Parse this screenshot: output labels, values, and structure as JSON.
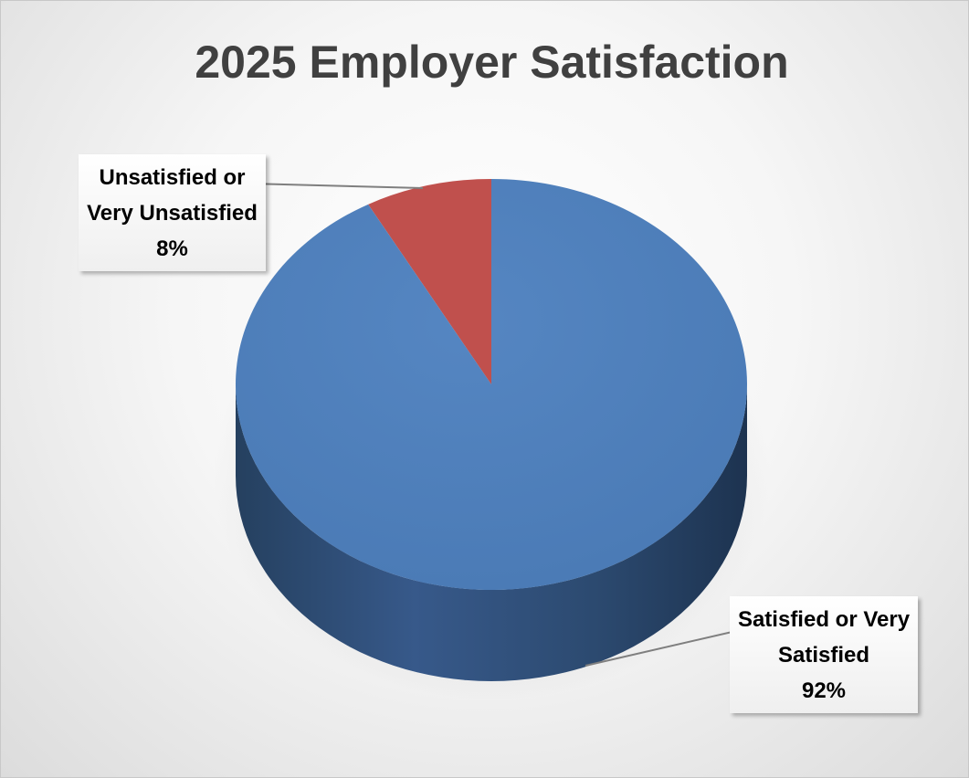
{
  "chart_data": {
    "type": "pie",
    "title": "2025 Employer Satisfaction",
    "slices": [
      {
        "name": "Unsatisfied or",
        "name_line2": "Very Unsatisfied",
        "value": 8,
        "value_label": "8%",
        "color": "#c0504d",
        "side_color": "#7a2f2c"
      },
      {
        "name": "Satisfied or Very",
        "name_line2": "Satisfied",
        "value": 92,
        "value_label": "92%",
        "color": "#4f81bd",
        "side_color": "#2c4a70"
      }
    ],
    "start_angle": "12 o'clock",
    "direction": "counterclockwise for red slice",
    "three_d": true,
    "legend": "none (data labels with leader lines)"
  }
}
